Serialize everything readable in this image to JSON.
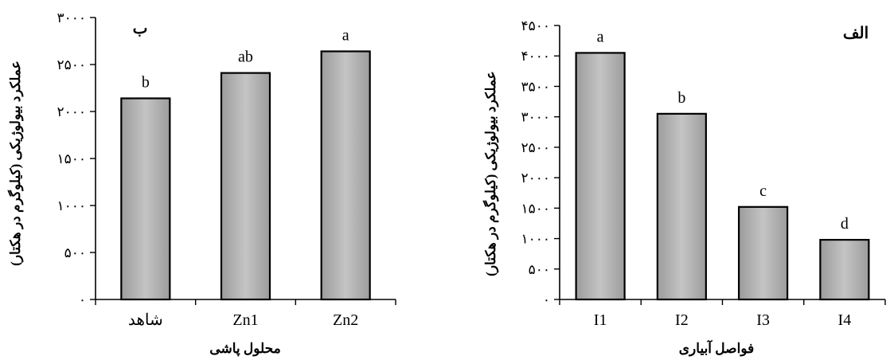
{
  "chart_data": [
    {
      "type": "bar",
      "panel_label": "ب",
      "categories": [
        "شاهد",
        "Zn1",
        "Zn2"
      ],
      "values": [
        2140,
        2410,
        2640
      ],
      "letters": [
        "b",
        "ab",
        "a"
      ],
      "ylabel": "عملکرد بیولوژیکی (کیلوگرم در هکتار)",
      "xlabel": "محلول پاشی",
      "ylim": [
        0,
        3000
      ],
      "yticks": [
        "۰",
        "۵۰۰",
        "۱۰۰۰",
        "۱۵۰۰",
        "۲۰۰۰",
        "۲۵۰۰",
        "۳۰۰۰"
      ],
      "ytick_values": [
        0,
        500,
        1000,
        1500,
        2000,
        2500,
        3000
      ],
      "grid": false,
      "bar_color": "#b3b3b3"
    },
    {
      "type": "bar",
      "panel_label": "الف",
      "categories": [
        "I1",
        "I2",
        "I3",
        "I4"
      ],
      "values": [
        4050,
        3050,
        1520,
        980
      ],
      "letters": [
        "a",
        "b",
        "c",
        "d"
      ],
      "ylabel": "عملکرد بیولوژیکی (کیلوگرم در هکتار)",
      "xlabel": "فواصل آبیاری",
      "ylim": [
        0,
        4500
      ],
      "yticks": [
        "۰",
        "۵۰۰",
        "۱۰۰۰",
        "۱۵۰۰",
        "۲۰۰۰",
        "۲۵۰۰",
        "۳۰۰۰",
        "۳۵۰۰",
        "۴۰۰۰",
        "۴۵۰۰"
      ],
      "ytick_values": [
        0,
        500,
        1000,
        1500,
        2000,
        2500,
        3000,
        3500,
        4000,
        4500
      ],
      "grid": false,
      "bar_color": "#b3b3b3"
    }
  ]
}
